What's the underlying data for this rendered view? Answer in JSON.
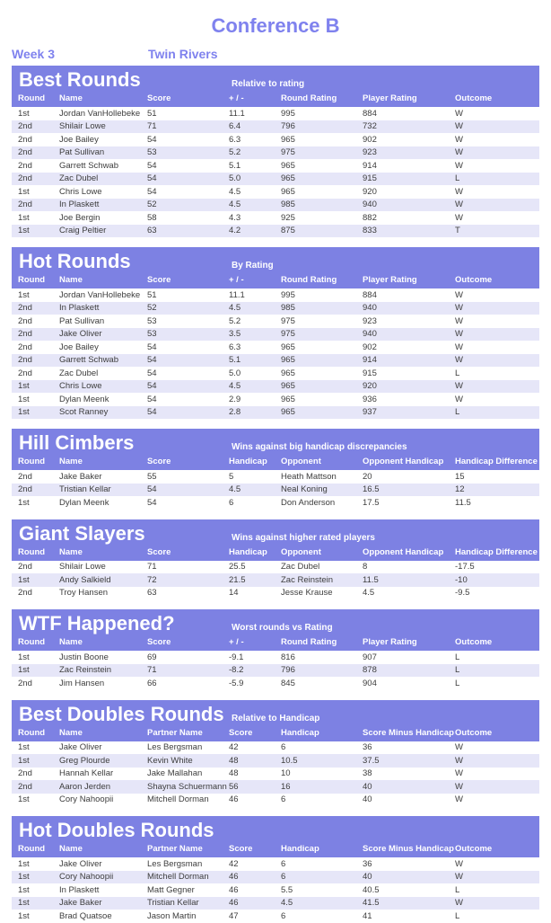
{
  "header": {
    "title": "Conference B",
    "week": "Week 3",
    "venue": "Twin Rivers"
  },
  "colors": {
    "accent": "#7f82ee",
    "banner": "#7d81e3",
    "row_alt": "#e6e6f8",
    "banner_text": "#ffffff",
    "body_text": "#3d3d3d"
  },
  "sections": [
    {
      "title": "Best Rounds",
      "subtitle": "Relative to rating",
      "columns": [
        "Round",
        "Name",
        "Score",
        "+ / -",
        "Round Rating",
        "Player Rating",
        "Outcome"
      ],
      "rows": [
        [
          "1st",
          "Jordan VanHollebeke",
          "51",
          "11.1",
          "995",
          "884",
          "W"
        ],
        [
          "2nd",
          "Shilair Lowe",
          "71",
          "6.4",
          "796",
          "732",
          "W"
        ],
        [
          "2nd",
          "Joe Bailey",
          "54",
          "6.3",
          "965",
          "902",
          "W"
        ],
        [
          "2nd",
          "Pat Sullivan",
          "53",
          "5.2",
          "975",
          "923",
          "W"
        ],
        [
          "2nd",
          "Garrett Schwab",
          "54",
          "5.1",
          "965",
          "914",
          "W"
        ],
        [
          "2nd",
          "Zac Dubel",
          "54",
          "5.0",
          "965",
          "915",
          "L"
        ],
        [
          "1st",
          "Chris Lowe",
          "54",
          "4.5",
          "965",
          "920",
          "W"
        ],
        [
          "2nd",
          "In Plaskett",
          "52",
          "4.5",
          "985",
          "940",
          "W"
        ],
        [
          "1st",
          "Joe Bergin",
          "58",
          "4.3",
          "925",
          "882",
          "W"
        ],
        [
          "1st",
          "Craig Peltier",
          "63",
          "4.2",
          "875",
          "833",
          "T"
        ]
      ]
    },
    {
      "title": "Hot Rounds",
      "subtitle": "By Rating",
      "columns": [
        "Round",
        "Name",
        "Score",
        "+ / -",
        "Round Rating",
        "Player Rating",
        "Outcome"
      ],
      "rows": [
        [
          "1st",
          "Jordan VanHollebeke",
          "51",
          "11.1",
          "995",
          "884",
          "W"
        ],
        [
          "2nd",
          "In Plaskett",
          "52",
          "4.5",
          "985",
          "940",
          "W"
        ],
        [
          "2nd",
          "Pat Sullivan",
          "53",
          "5.2",
          "975",
          "923",
          "W"
        ],
        [
          "2nd",
          "Jake Oliver",
          "53",
          "3.5",
          "975",
          "940",
          "W"
        ],
        [
          "2nd",
          "Joe Bailey",
          "54",
          "6.3",
          "965",
          "902",
          "W"
        ],
        [
          "2nd",
          "Garrett Schwab",
          "54",
          "5.1",
          "965",
          "914",
          "W"
        ],
        [
          "2nd",
          "Zac Dubel",
          "54",
          "5.0",
          "965",
          "915",
          "L"
        ],
        [
          "1st",
          "Chris Lowe",
          "54",
          "4.5",
          "965",
          "920",
          "W"
        ],
        [
          "1st",
          "Dylan Meenk",
          "54",
          "2.9",
          "965",
          "936",
          "W"
        ],
        [
          "1st",
          "Scot Ranney",
          "54",
          "2.8",
          "965",
          "937",
          "L"
        ]
      ]
    },
    {
      "title": "Hill Cimbers",
      "subtitle": "Wins against big handicap discrepancies",
      "columns": [
        "Round",
        "Name",
        "Score",
        "Handicap",
        "Opponent",
        "Opponent Handicap",
        "Handicap Difference"
      ],
      "rows": [
        [
          "2nd",
          "Jake Baker",
          "55",
          "5",
          "Heath Mattson",
          "20",
          "15"
        ],
        [
          "2nd",
          "Tristian Kellar",
          "54",
          "4.5",
          "Neal Koning",
          "16.5",
          "12"
        ],
        [
          "1st",
          "Dylan Meenk",
          "54",
          "6",
          "Don Anderson",
          "17.5",
          "11.5"
        ]
      ]
    },
    {
      "title": "Giant Slayers",
      "subtitle": "Wins against higher rated players",
      "columns": [
        "Round",
        "Name",
        "Score",
        "Handicap",
        "Opponent",
        "Opponent Handicap",
        "Handicap Difference"
      ],
      "rows": [
        [
          "2nd",
          "Shilair Lowe",
          "71",
          "25.5",
          "Zac Dubel",
          "8",
          "-17.5"
        ],
        [
          "1st",
          "Andy Salkield",
          "72",
          "21.5",
          "Zac Reinstein",
          "11.5",
          "-10"
        ],
        [
          "2nd",
          "Troy Hansen",
          "63",
          "14",
          "Jesse Krause",
          "4.5",
          "-9.5"
        ]
      ]
    },
    {
      "title": "WTF Happened?",
      "subtitle": "Worst rounds vs Rating",
      "columns": [
        "Round",
        "Name",
        "Score",
        "+ / -",
        "Round Rating",
        "Player Rating",
        "Outcome"
      ],
      "rows": [
        [
          "1st",
          "Justin Boone",
          "69",
          "-9.1",
          "816",
          "907",
          "L"
        ],
        [
          "1st",
          "Zac Reinstein",
          "71",
          "-8.2",
          "796",
          "878",
          "L"
        ],
        [
          "2nd",
          "Jim Hansen",
          "66",
          "-5.9",
          "845",
          "904",
          "L"
        ]
      ]
    },
    {
      "title": "Best Doubles Rounds",
      "subtitle": "Relative to Handicap",
      "columns": [
        "Round",
        "Name",
        "Partner Name",
        "Score",
        "Handicap",
        "Score Minus Handicap",
        "Outcome"
      ],
      "rows": [
        [
          "1st",
          "Jake Oliver",
          "Les Bergsman",
          "42",
          "6",
          "36",
          "W"
        ],
        [
          "1st",
          "Greg Plourde",
          "Kevin White",
          "48",
          "10.5",
          "37.5",
          "W"
        ],
        [
          "2nd",
          "Hannah Kellar",
          "Jake Mallahan",
          "48",
          "10",
          "38",
          "W"
        ],
        [
          "2nd",
          "Aaron Jerden",
          "Shayna Schuermann",
          "56",
          "16",
          "40",
          "W"
        ],
        [
          "1st",
          "Cory Nahoopii",
          "Mitchell Dorman",
          "46",
          "6",
          "40",
          "W"
        ]
      ]
    },
    {
      "title": "Hot Doubles Rounds",
      "subtitle": "",
      "columns": [
        "Round",
        "Name",
        "Partner Name",
        "Score",
        "Handicap",
        "Score Minus Handicap",
        "Outcome"
      ],
      "rows": [
        [
          "1st",
          "Jake Oliver",
          "Les Bergsman",
          "42",
          "6",
          "36",
          "W"
        ],
        [
          "1st",
          "Cory Nahoopii",
          "Mitchell Dorman",
          "46",
          "6",
          "40",
          "W"
        ],
        [
          "1st",
          "In Plaskett",
          "Matt Gegner",
          "46",
          "5.5",
          "40.5",
          "L"
        ],
        [
          "1st",
          "Jake Baker",
          "Tristian Kellar",
          "46",
          "4.5",
          "41.5",
          "W"
        ],
        [
          "1st",
          "Brad Quatsoe",
          "Jason Martin",
          "47",
          "6",
          "41",
          "L"
        ]
      ]
    }
  ]
}
